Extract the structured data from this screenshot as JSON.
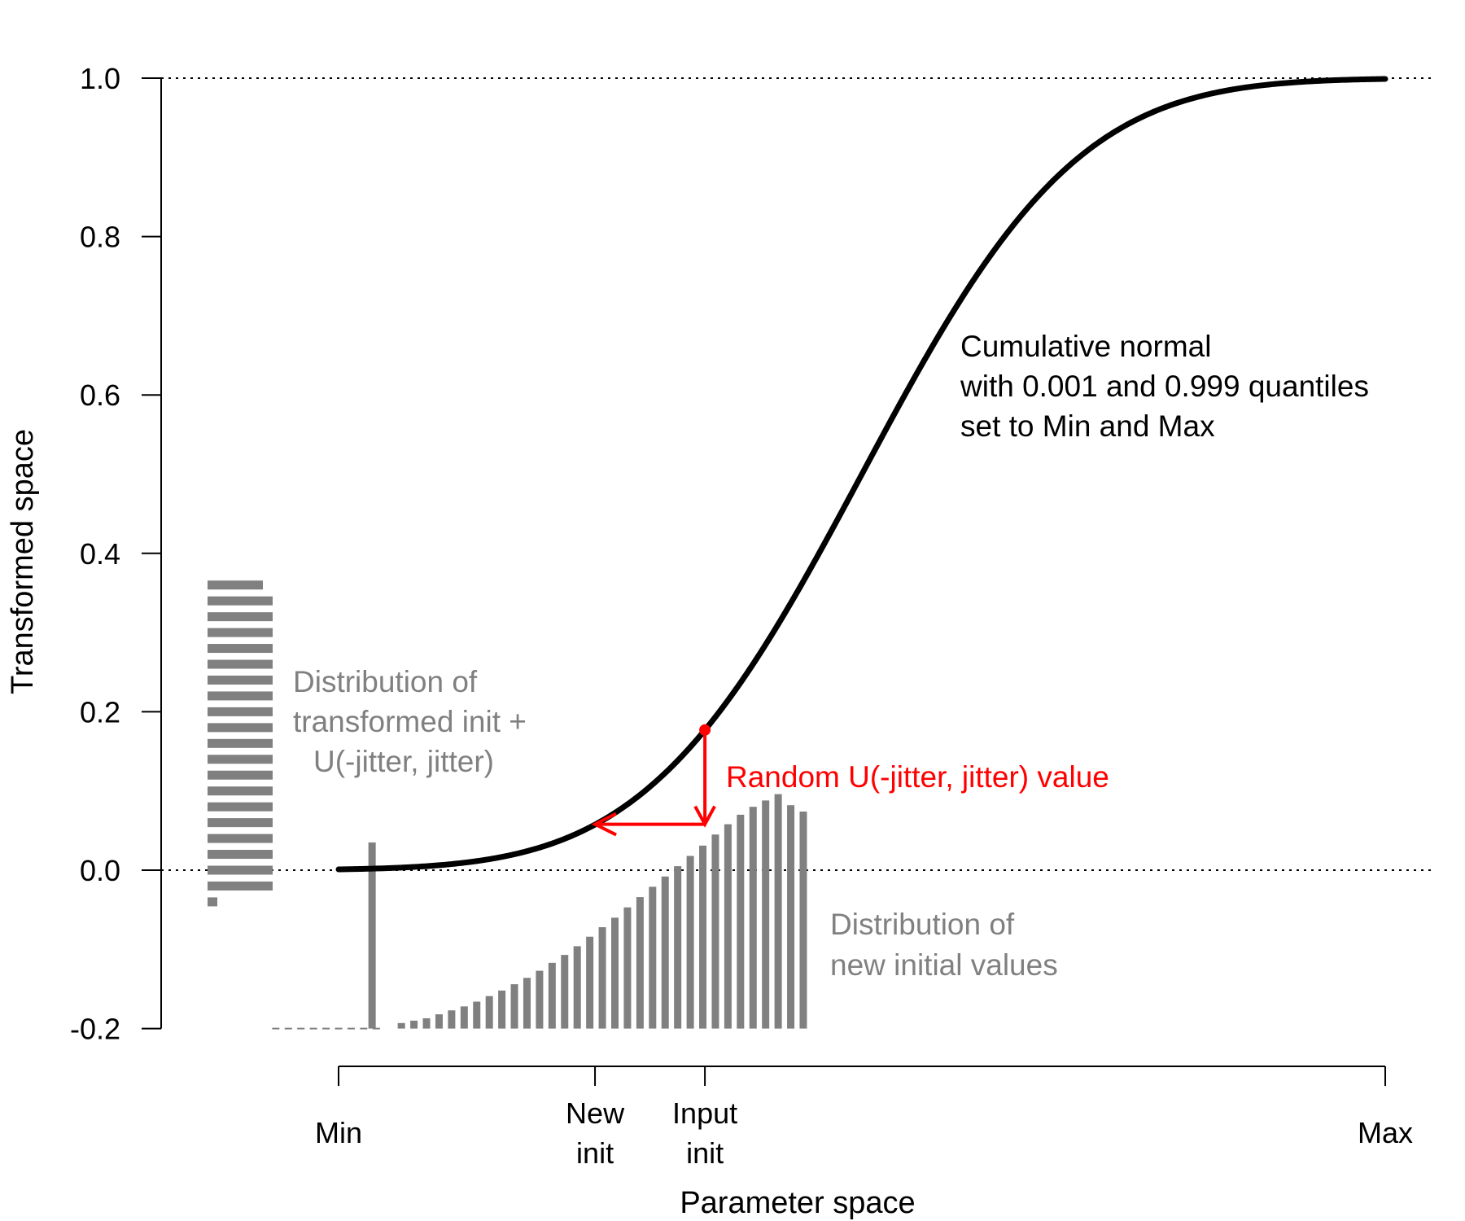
{
  "chart_data": {
    "type": "line",
    "xlabel": "Parameter space",
    "ylabel": "Transformed space",
    "ylim": [
      -0.2,
      1.0
    ],
    "y_ticks": [
      "-0.2",
      "0.0",
      "0.2",
      "0.4",
      "0.6",
      "0.8",
      "1.0"
    ],
    "x_scale": "normalized, Min = 0, Max = 1",
    "x_tick_labels": [
      {
        "at": 0.0,
        "lines": [
          "Min"
        ]
      },
      {
        "at": 0.245,
        "lines": [
          "New",
          "init"
        ]
      },
      {
        "at": 0.35,
        "lines": [
          "Input",
          "init"
        ]
      },
      {
        "at": 1.0,
        "lines": [
          "Max"
        ]
      }
    ],
    "reference_lines": [
      0.0,
      1.0
    ],
    "curve": {
      "kind": "cumulative normal",
      "mean": 0.5,
      "sd": 0.1618
    },
    "points": {
      "input_init": {
        "x": 0.35,
        "y": 0.177
      },
      "new_init": {
        "x": 0.245,
        "y": 0.058
      }
    },
    "transformed_histogram": {
      "y_bins": [
        -0.04,
        -0.02,
        0.0,
        0.02,
        0.04,
        0.06,
        0.08,
        0.1,
        0.12,
        0.14,
        0.16,
        0.18,
        0.2,
        0.22,
        0.24,
        0.26,
        0.28,
        0.3,
        0.32,
        0.34,
        0.36
      ],
      "lengths": [
        0.15,
        1.0,
        1.0,
        1.0,
        1.0,
        1.0,
        1.0,
        1.0,
        1.0,
        1.0,
        1.0,
        1.0,
        1.0,
        1.0,
        1.0,
        1.0,
        1.0,
        1.0,
        1.0,
        1.0,
        0.85
      ]
    },
    "new_init_histogram": {
      "x_bins": [
        -0.06,
        -0.048,
        -0.036,
        -0.024,
        -0.012,
        0.0,
        0.012,
        0.024,
        0.036,
        0.06,
        0.072,
        0.084,
        0.096,
        0.108,
        0.12,
        0.132,
        0.144,
        0.156,
        0.168,
        0.18,
        0.192,
        0.204,
        0.216,
        0.228,
        0.24,
        0.252,
        0.264,
        0.276,
        0.288,
        0.3,
        0.312,
        0.324,
        0.336,
        0.348,
        0.36,
        0.372,
        0.384,
        0.396,
        0.408,
        0.42,
        0.432,
        0.444
      ],
      "heights": [
        0.0,
        0.0,
        0.0,
        0.0,
        0.0,
        0.0,
        0.0,
        0.0,
        0.0,
        0.007,
        0.01,
        0.013,
        0.018,
        0.023,
        0.028,
        0.034,
        0.041,
        0.048,
        0.056,
        0.064,
        0.073,
        0.083,
        0.093,
        0.104,
        0.116,
        0.128,
        0.14,
        0.153,
        0.166,
        0.179,
        0.192,
        0.205,
        0.218,
        0.231,
        0.245,
        0.258,
        0.27,
        0.28,
        0.288,
        0.296,
        0.282,
        0.274
      ],
      "spike": {
        "x": 0.032,
        "height": 0.235
      }
    },
    "annotations": {
      "curve_label": [
        "Cumulative normal",
        "with 0.001 and 0.999 quantiles",
        "set to Min and Max"
      ],
      "transformed_label": [
        "Distribution of",
        "transformed init +",
        "U(-jitter, jitter)"
      ],
      "jitter_label": "Random U(-jitter, jitter) value",
      "new_values_label": [
        "Distribution of",
        "new initial values"
      ]
    },
    "colors": {
      "curve": "#000000",
      "histograms": "#808080",
      "annotation_gray": "#808080",
      "jitter": "#ff0000"
    },
    "grid": false,
    "legend": "none"
  }
}
